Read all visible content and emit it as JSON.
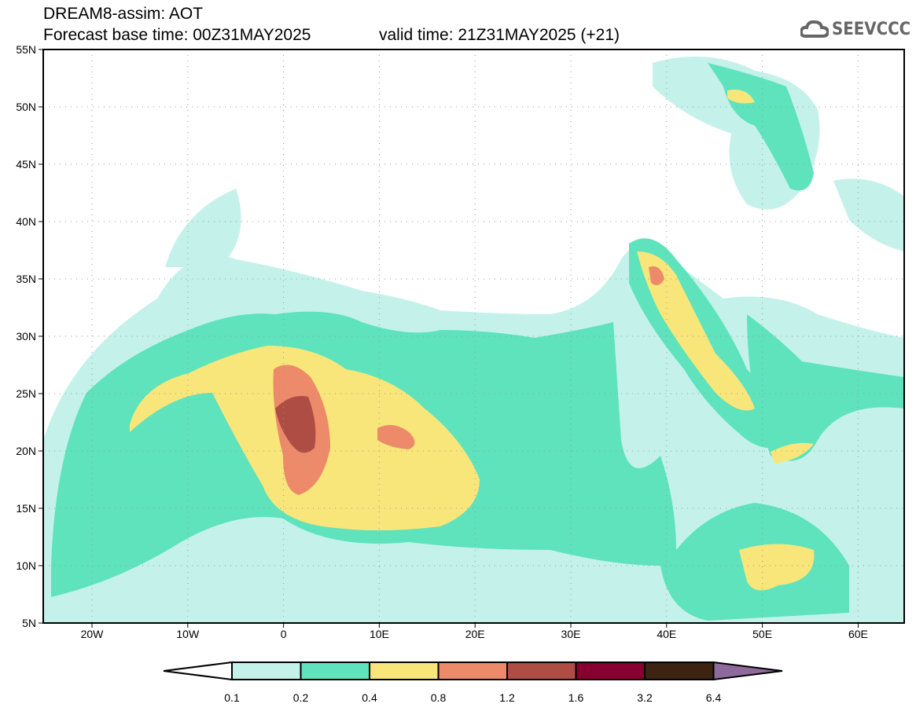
{
  "header": {
    "title": "DREAM8-assim: AOT",
    "base_time": "Forecast base time: 00Z31MAY2025",
    "valid_time": "valid time: 21Z31MAY2025 (+21)"
  },
  "logo": {
    "text": "SEEVCCC",
    "icon": "cloud-icon"
  },
  "map": {
    "lat_labels": [
      "55N",
      "50N",
      "45N",
      "40N",
      "35N",
      "30N",
      "25N",
      "20N",
      "15N",
      "10N",
      "5N"
    ],
    "lon_labels": [
      "20W",
      "10W",
      "0",
      "10E",
      "20E",
      "30E",
      "40E",
      "50E",
      "60E"
    ],
    "variable": "AOT"
  },
  "colorbar": {
    "labels": [
      "0.1",
      "0.2",
      "0.4",
      "0.8",
      "1.2",
      "1.6",
      "3.2",
      "6.4"
    ],
    "colors": [
      "#ffffff",
      "#c4f2ea",
      "#5ee3bd",
      "#f8e67a",
      "#ec8a6a",
      "#ad4d44",
      "#870030",
      "#3c2312",
      "#8e6a9c"
    ]
  }
}
